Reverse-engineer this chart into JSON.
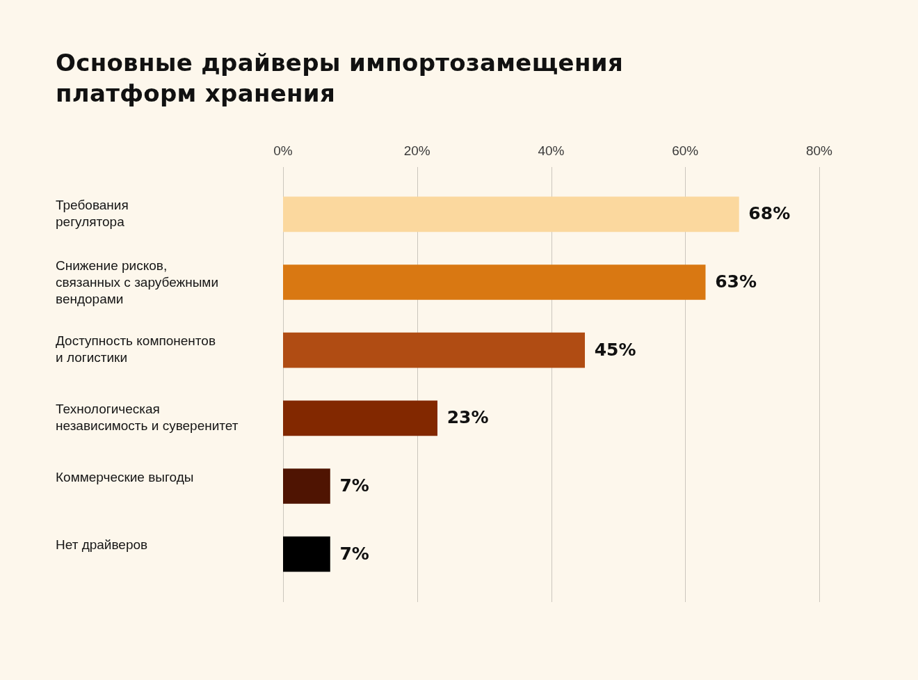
{
  "chart_data": {
    "type": "bar",
    "orientation": "horizontal",
    "title": "Основные драйверы импортозамещения платформ хранения",
    "categories": [
      "Требования\nрегулятора",
      "Снижение рисков,\nсвязанных с зарубежными\nвендорами",
      "Доступность компонентов\nи логистики",
      "Технологическая\nнезависимость и суверенитет",
      "Коммерческие выгоды",
      "Нет драйверов"
    ],
    "values": [
      68,
      63,
      45,
      23,
      7,
      7
    ],
    "colors": [
      "#fbd89e",
      "#d97812",
      "#b04c13",
      "#822800",
      "#4f1402",
      "#000000"
    ],
    "value_labels": [
      "68%",
      "63%",
      "45%",
      "23%",
      "7%",
      "7%"
    ],
    "xlim": [
      0,
      80
    ],
    "xticks": [
      {
        "value": 0,
        "label": "0%"
      },
      {
        "value": 20,
        "label": "20%"
      },
      {
        "value": 40,
        "label": "40%"
      },
      {
        "value": 60,
        "label": "60%"
      },
      {
        "value": 80,
        "label": "80%"
      }
    ],
    "grid": "x"
  }
}
